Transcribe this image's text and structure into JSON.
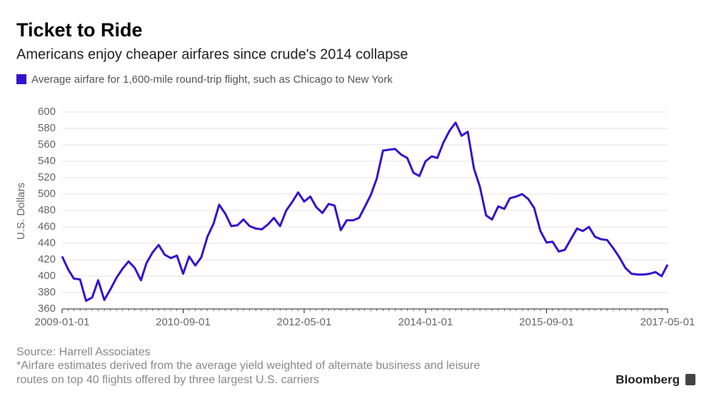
{
  "chart_data": {
    "type": "line",
    "title": "Ticket to Ride",
    "subtitle": "Americans enjoy cheaper airfares since crude's 2014 collapse",
    "y_label": "U.S. Dollars",
    "source": "Source: Harrell Associates",
    "footnote": [
      "*Airfare estimates derived from the average yield weighted of alternate business and leisure",
      "routes on top 40 flights offered by three largest U.S. carriers"
    ],
    "brand": "Bloomberg",
    "grid": true,
    "x": [
      "2009-01-01",
      "2009-02-01",
      "2009-03-01",
      "2009-04-01",
      "2009-05-01",
      "2009-06-01",
      "2009-07-01",
      "2009-08-01",
      "2009-09-01",
      "2009-10-01",
      "2009-11-01",
      "2009-12-01",
      "2010-01-01",
      "2010-02-01",
      "2010-03-01",
      "2010-04-01",
      "2010-05-01",
      "2010-06-01",
      "2010-07-01",
      "2010-08-01",
      "2010-09-01",
      "2010-10-01",
      "2010-11-01",
      "2010-12-01",
      "2011-01-01",
      "2011-02-01",
      "2011-03-01",
      "2011-04-01",
      "2011-05-01",
      "2011-06-01",
      "2011-07-01",
      "2011-08-01",
      "2011-09-01",
      "2011-10-01",
      "2011-11-01",
      "2011-12-01",
      "2012-01-01",
      "2012-02-01",
      "2012-03-01",
      "2012-04-01",
      "2012-05-01",
      "2012-06-01",
      "2012-07-01",
      "2012-08-01",
      "2012-09-01",
      "2012-10-01",
      "2012-11-01",
      "2012-12-01",
      "2013-01-01",
      "2013-02-01",
      "2013-03-01",
      "2013-04-01",
      "2013-05-01",
      "2013-06-01",
      "2013-07-01",
      "2013-08-01",
      "2013-09-01",
      "2013-10-01",
      "2013-11-01",
      "2013-12-01",
      "2014-01-01",
      "2014-02-01",
      "2014-03-01",
      "2014-04-01",
      "2014-05-01",
      "2014-06-01",
      "2014-07-01",
      "2014-08-01",
      "2014-09-01",
      "2014-10-01",
      "2014-11-01",
      "2014-12-01",
      "2015-01-01",
      "2015-02-01",
      "2015-03-01",
      "2015-04-01",
      "2015-05-01",
      "2015-06-01",
      "2015-07-01",
      "2015-08-01",
      "2015-09-01",
      "2015-10-01",
      "2015-11-01",
      "2015-12-01",
      "2016-01-01",
      "2016-02-01",
      "2016-03-01",
      "2016-04-01",
      "2016-05-01",
      "2016-06-01",
      "2016-07-01",
      "2016-08-01",
      "2016-09-01",
      "2016-10-01",
      "2016-11-01",
      "2016-12-01",
      "2017-01-01",
      "2017-02-01",
      "2017-03-01",
      "2017-04-01",
      "2017-05-01"
    ],
    "series": [
      {
        "name": "Average airfare for 1,600-mile round-trip flight, such as Chicago to New York",
        "color": "#3314cc",
        "values": [
          424,
          408,
          397,
          396,
          370,
          374,
          395,
          371,
          384,
          398,
          409,
          418,
          410,
          395,
          416,
          429,
          438,
          426,
          422,
          425,
          403,
          424,
          413,
          423,
          448,
          464,
          487,
          476,
          461,
          462,
          469,
          461,
          458,
          457,
          463,
          471,
          461,
          480,
          490,
          502,
          491,
          497,
          484,
          477,
          488,
          486,
          456,
          468,
          468,
          471,
          484,
          499,
          519,
          553,
          554,
          555,
          548,
          544,
          526,
          522,
          540,
          546,
          544,
          563,
          577,
          587,
          571,
          576,
          531,
          509,
          474,
          469,
          485,
          482,
          495,
          497,
          500,
          494,
          483,
          455,
          441,
          442,
          430,
          432,
          445,
          458,
          455,
          460,
          448,
          445,
          444,
          434,
          423,
          410,
          403,
          402,
          402,
          403,
          405,
          400,
          414
        ]
      }
    ],
    "xlim": [
      "2009-01-01",
      "2017-05-01"
    ],
    "xticks": [
      "2009-01-01",
      "2010-09-01",
      "2012-05-01",
      "2014-01-01",
      "2015-09-01",
      "2017-05-01"
    ],
    "ylim": [
      360,
      600
    ],
    "yticks": [
      360,
      380,
      400,
      420,
      440,
      460,
      480,
      500,
      520,
      540,
      560,
      580,
      600
    ]
  }
}
